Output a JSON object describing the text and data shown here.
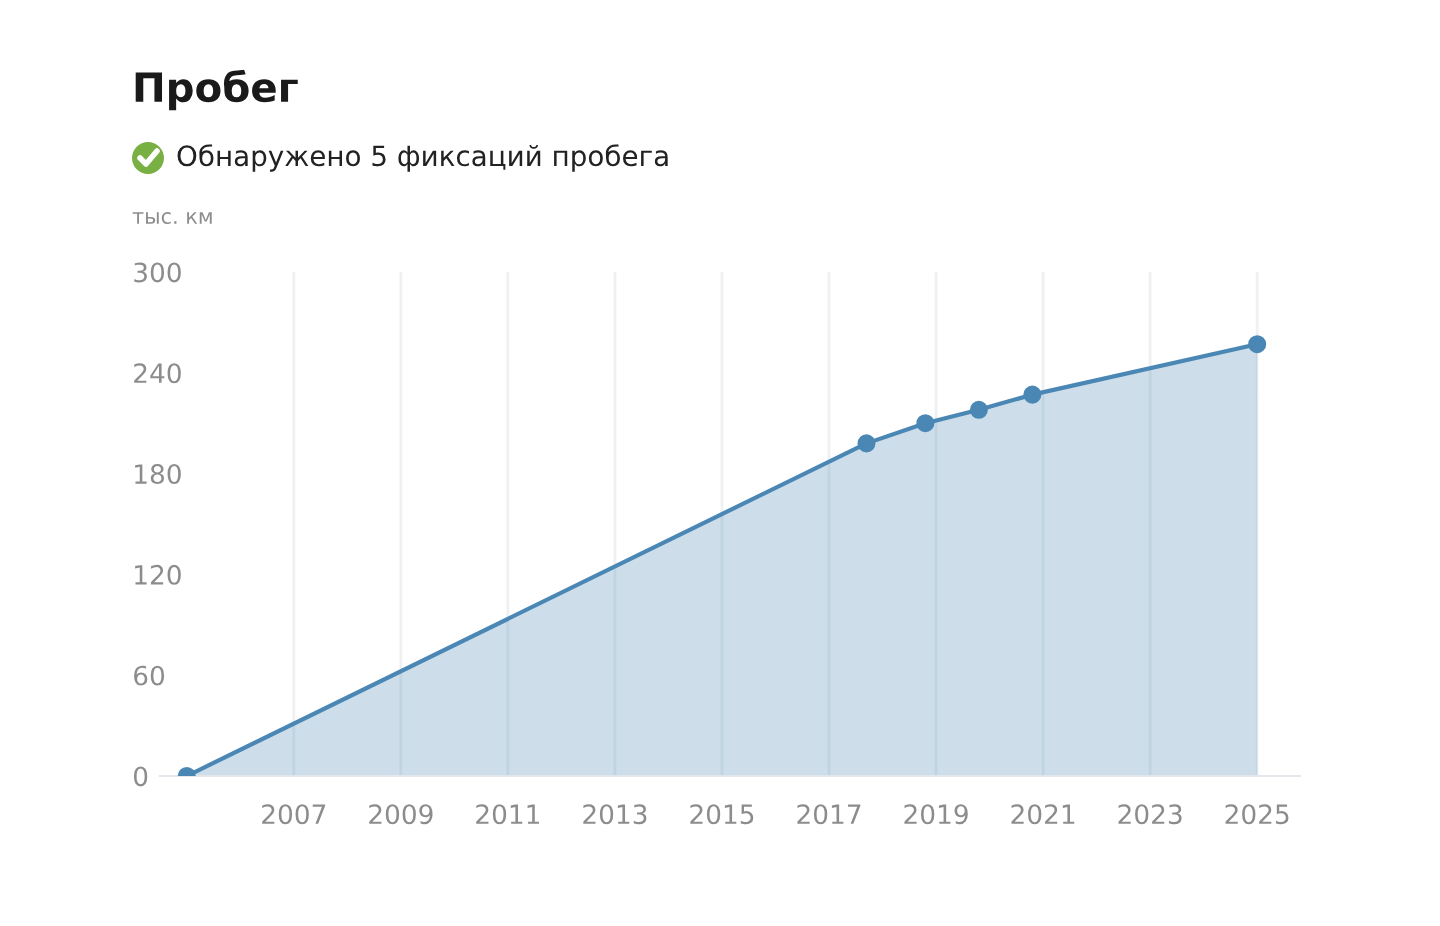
{
  "chart_data": {
    "type": "area",
    "title": "Пробег",
    "subtitle": "Обнаружено 5 фиксаций пробега",
    "ylabel": "тыс. км",
    "x": [
      2005,
      2017.7,
      2018.8,
      2019.8,
      2020.8,
      2025
    ],
    "series": [
      {
        "color": "#4a87b5",
        "values": [
          0,
          198,
          210,
          218,
          227,
          257
        ]
      }
    ],
    "xlim": [
      2004.5,
      2025.8
    ],
    "xticks": [
      2007,
      2009,
      2011,
      2013,
      2015,
      2017,
      2019,
      2021,
      2023,
      2025
    ],
    "ylim": [
      0,
      300
    ],
    "yticks": [
      0,
      60,
      120,
      180,
      240,
      300
    ],
    "grid": "x",
    "marker": "circle",
    "line_style": "solid"
  }
}
